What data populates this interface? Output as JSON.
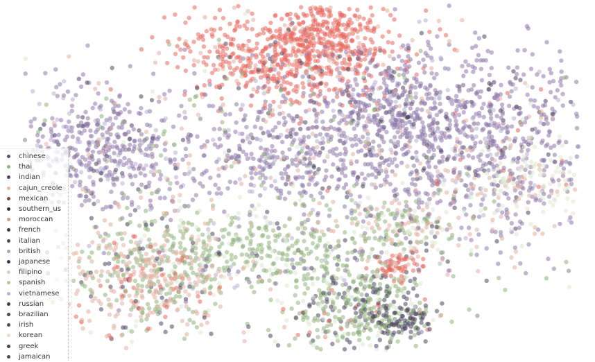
{
  "chart_data": {
    "type": "scatter",
    "title": "",
    "xlabel": "",
    "ylabel": "",
    "grid": false,
    "axes_visible": false,
    "legend_placement": "left",
    "series": [
      {
        "name": "chinese",
        "color": "#5a4e6b"
      },
      {
        "name": "thai",
        "color": "#8fb37a"
      },
      {
        "name": "indian",
        "color": "#514a5a"
      },
      {
        "name": "cajun_creole",
        "color": "#e3b5a4"
      },
      {
        "name": "mexican",
        "color": "#7e4343"
      },
      {
        "name": "southern_us",
        "color": "#2f2f3d"
      },
      {
        "name": "moroccan",
        "color": "#d69c7a"
      },
      {
        "name": "french",
        "color": "#3d3d4a"
      },
      {
        "name": "italian",
        "color": "#4a4a55"
      },
      {
        "name": "british",
        "color": "#a6a6ad"
      },
      {
        "name": "japanese",
        "color": "#3a3a48"
      },
      {
        "name": "filipino",
        "color": "#c8d7bd"
      },
      {
        "name": "spanish",
        "color": "#b0c89c"
      },
      {
        "name": "vietnamese",
        "color": "#b7b0cf"
      },
      {
        "name": "russian",
        "color": "#3b3b47"
      },
      {
        "name": "brazilian",
        "color": "#444452"
      },
      {
        "name": "irish",
        "color": "#4c4c56"
      },
      {
        "name": "korean",
        "color": "#edd7c8"
      },
      {
        "name": "greek",
        "color": "#3f3f4b"
      },
      {
        "name": "jamaican",
        "color": "#4b4b57"
      }
    ],
    "point_colors": {
      "red": "#e8685f",
      "purple": "#8e79aa",
      "green": "#8fb37a",
      "pink": "#e3b0a2",
      "dark": "#4d4660",
      "lavender": "#b7b0cf",
      "paleGreen": "#dde8d2"
    }
  }
}
